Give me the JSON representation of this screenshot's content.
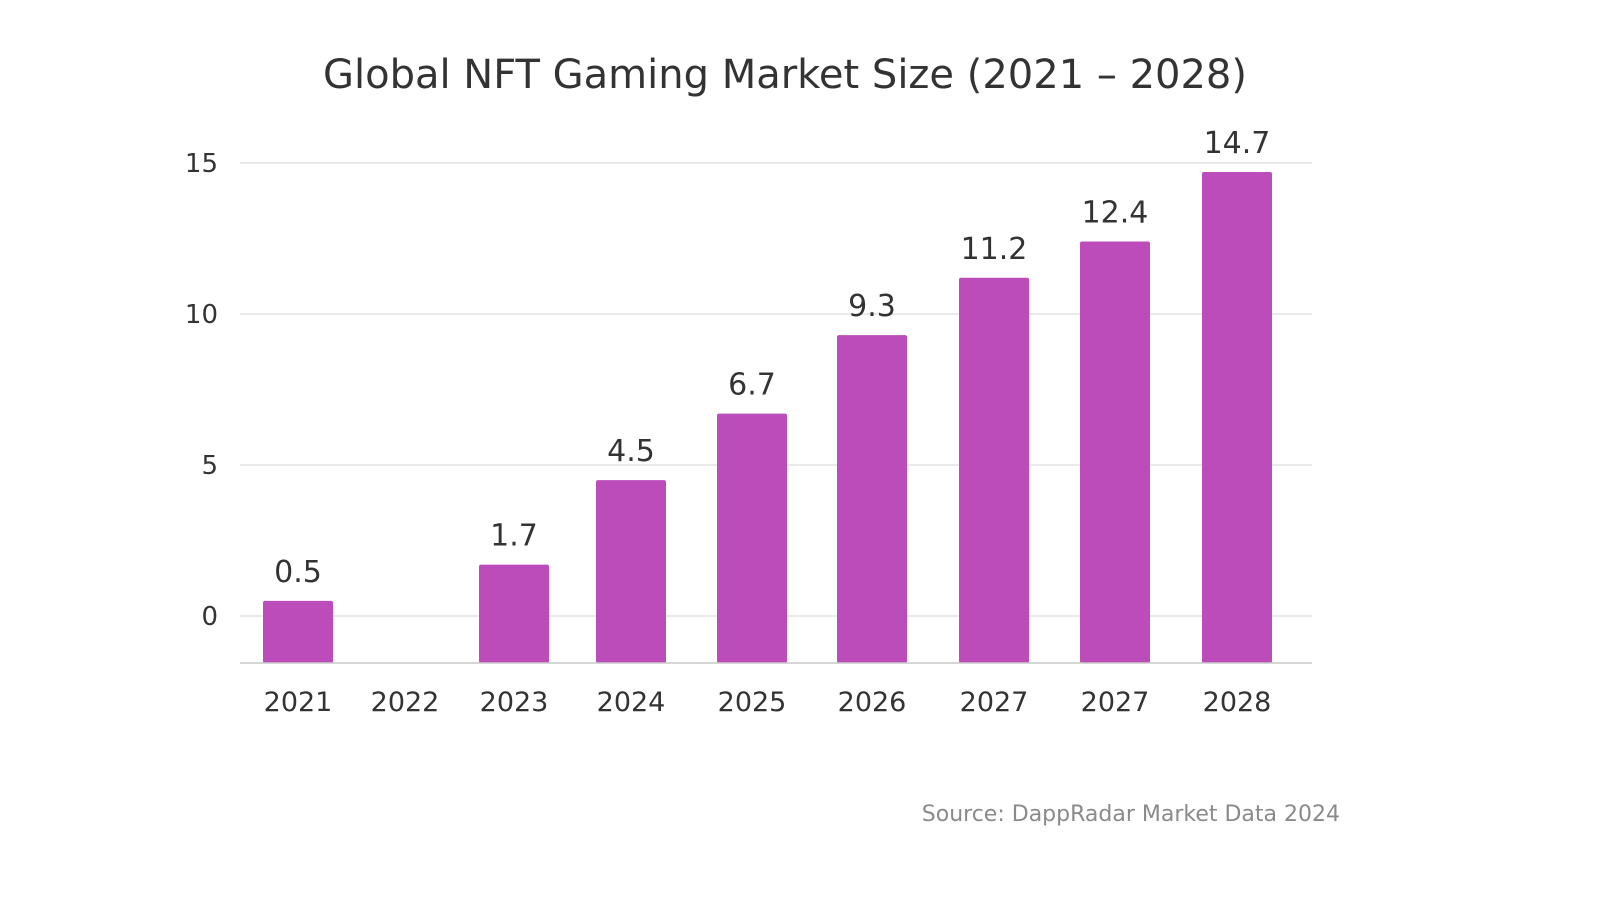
{
  "chart_data": {
    "type": "bar",
    "title": "Global NFT Gaming Market Size (2021 – 2028)",
    "categories": [
      "2021",
      "2022",
      "2023",
      "2024",
      "2025",
      "2026",
      "2027",
      "2027",
      "2028"
    ],
    "values": [
      0.5,
      null,
      1.7,
      4.5,
      6.7,
      9.3,
      11.2,
      12.4,
      14.7
    ],
    "data_labels": [
      "0.5",
      "",
      "1.7",
      "4.5",
      "6.7",
      "9.3",
      "11.2",
      "12.4",
      "14.7"
    ],
    "yticks": [
      "0",
      "5",
      "10",
      "15"
    ],
    "ylim": [
      -1.5,
      15
    ],
    "grid": true,
    "bar_color": "#bb4cba",
    "xlabel": "",
    "ylabel": ""
  },
  "source": "Source: DappRadar Market Data 2024"
}
